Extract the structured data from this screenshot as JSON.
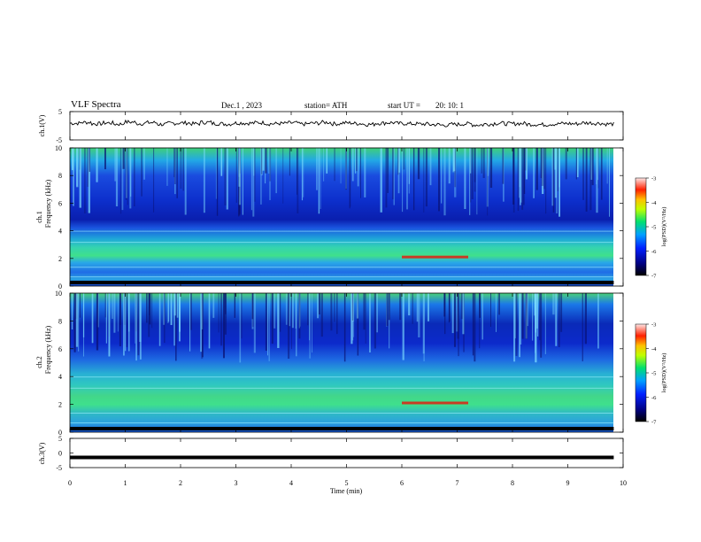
{
  "header": {
    "title": "VLF  Spectra",
    "date": "Dec.1  , 2023",
    "station": "station= ATH",
    "start_label": "start  UT  =",
    "start_time": "20: 10: 1"
  },
  "chart_data": [
    {
      "id": "ch1_waveform",
      "type": "line",
      "ylabel": "ch.1(V)",
      "ylim": [
        -5,
        5
      ],
      "yticks": [
        5,
        -5
      ],
      "xlim": [
        0,
        10
      ],
      "x_end_min": 9.83,
      "series": [
        {
          "description_values_approx": "noise around",
          "values": [
            0.9,
            1.2,
            0.7,
            1.0,
            0.6,
            1.3,
            0.8,
            1.1,
            0.5,
            0.9,
            1.0,
            0.7,
            1.2,
            0.8,
            0.6,
            1.0,
            0.9,
            1.1,
            0.7,
            0.8,
            1.0,
            0.6,
            0.9,
            1.2,
            0.7,
            1.0,
            0.8,
            0.5,
            0.9,
            1.1,
            0.8,
            0.7,
            0.6,
            0.4,
            0.2,
            0.5,
            0.7,
            0.3,
            0.6,
            0.9,
            0.7,
            0.8,
            0.5,
            0.4,
            0.6,
            0.8,
            0.7,
            1.0,
            0.9,
            0.6
          ]
        }
      ]
    },
    {
      "id": "ch1_spectrogram",
      "type": "heatmap",
      "ylabel_top": "ch.1",
      "ylabel": "Frequency  (kHz)",
      "ylim": [
        0,
        10
      ],
      "yticks": [
        0,
        2,
        4,
        6,
        8,
        10
      ],
      "xlim": [
        0,
        10
      ],
      "colorbar": {
        "label": "log(PSD)(V²/Hz)",
        "range": [
          -7,
          -3
        ],
        "ticks": [
          -3,
          -4,
          -5,
          -6,
          -7
        ]
      }
    },
    {
      "id": "ch2_spectrogram",
      "type": "heatmap",
      "ylabel_top": "ch.2",
      "ylabel": "Frequency  (kHz)",
      "ylim": [
        0,
        10
      ],
      "yticks": [
        0,
        2,
        4,
        6,
        8,
        10
      ],
      "xlim": [
        0,
        10
      ],
      "colorbar": {
        "label": "log(PSD)(V²/Hz)",
        "range": [
          -7,
          -3
        ],
        "ticks": [
          -3,
          -4,
          -5,
          -6,
          -7
        ]
      }
    },
    {
      "id": "ch3_waveform",
      "type": "line",
      "ylabel": "ch.3(V)",
      "ylim": [
        -5,
        5
      ],
      "yticks": [
        5,
        0,
        -5
      ],
      "xlim": [
        0,
        10
      ],
      "series": [
        {
          "constant_value": -1.5
        }
      ]
    }
  ],
  "xaxis": {
    "label": "Time  (min)",
    "ticks": [
      0,
      1,
      2,
      3,
      4,
      5,
      6,
      7,
      8,
      9,
      10
    ]
  }
}
